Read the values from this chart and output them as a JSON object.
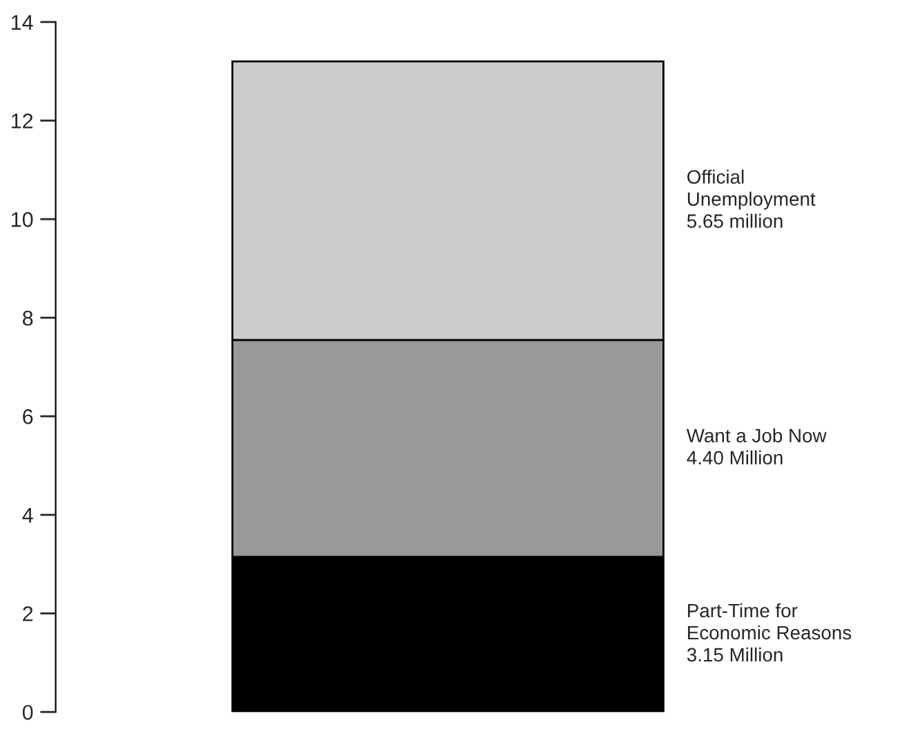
{
  "chart_data": {
    "type": "bar",
    "stacked": true,
    "categories": [
      null
    ],
    "series": [
      {
        "name": "Part-Time for\nEconomic Reasons\n3.15 Million",
        "color": "#000000",
        "values": [
          3.15
        ]
      },
      {
        "name": "Want a Job Now\n4.40 Million",
        "color": "#999999",
        "values": [
          4.4
        ]
      },
      {
        "name": "Official\nUnemployment\n5.65 million",
        "color": "#cccccc",
        "values": [
          5.65
        ]
      }
    ],
    "ylim": [
      0,
      14
    ],
    "yticks": [
      0,
      2,
      4,
      6,
      8,
      10,
      12,
      14
    ],
    "grid": false,
    "legend": false
  }
}
